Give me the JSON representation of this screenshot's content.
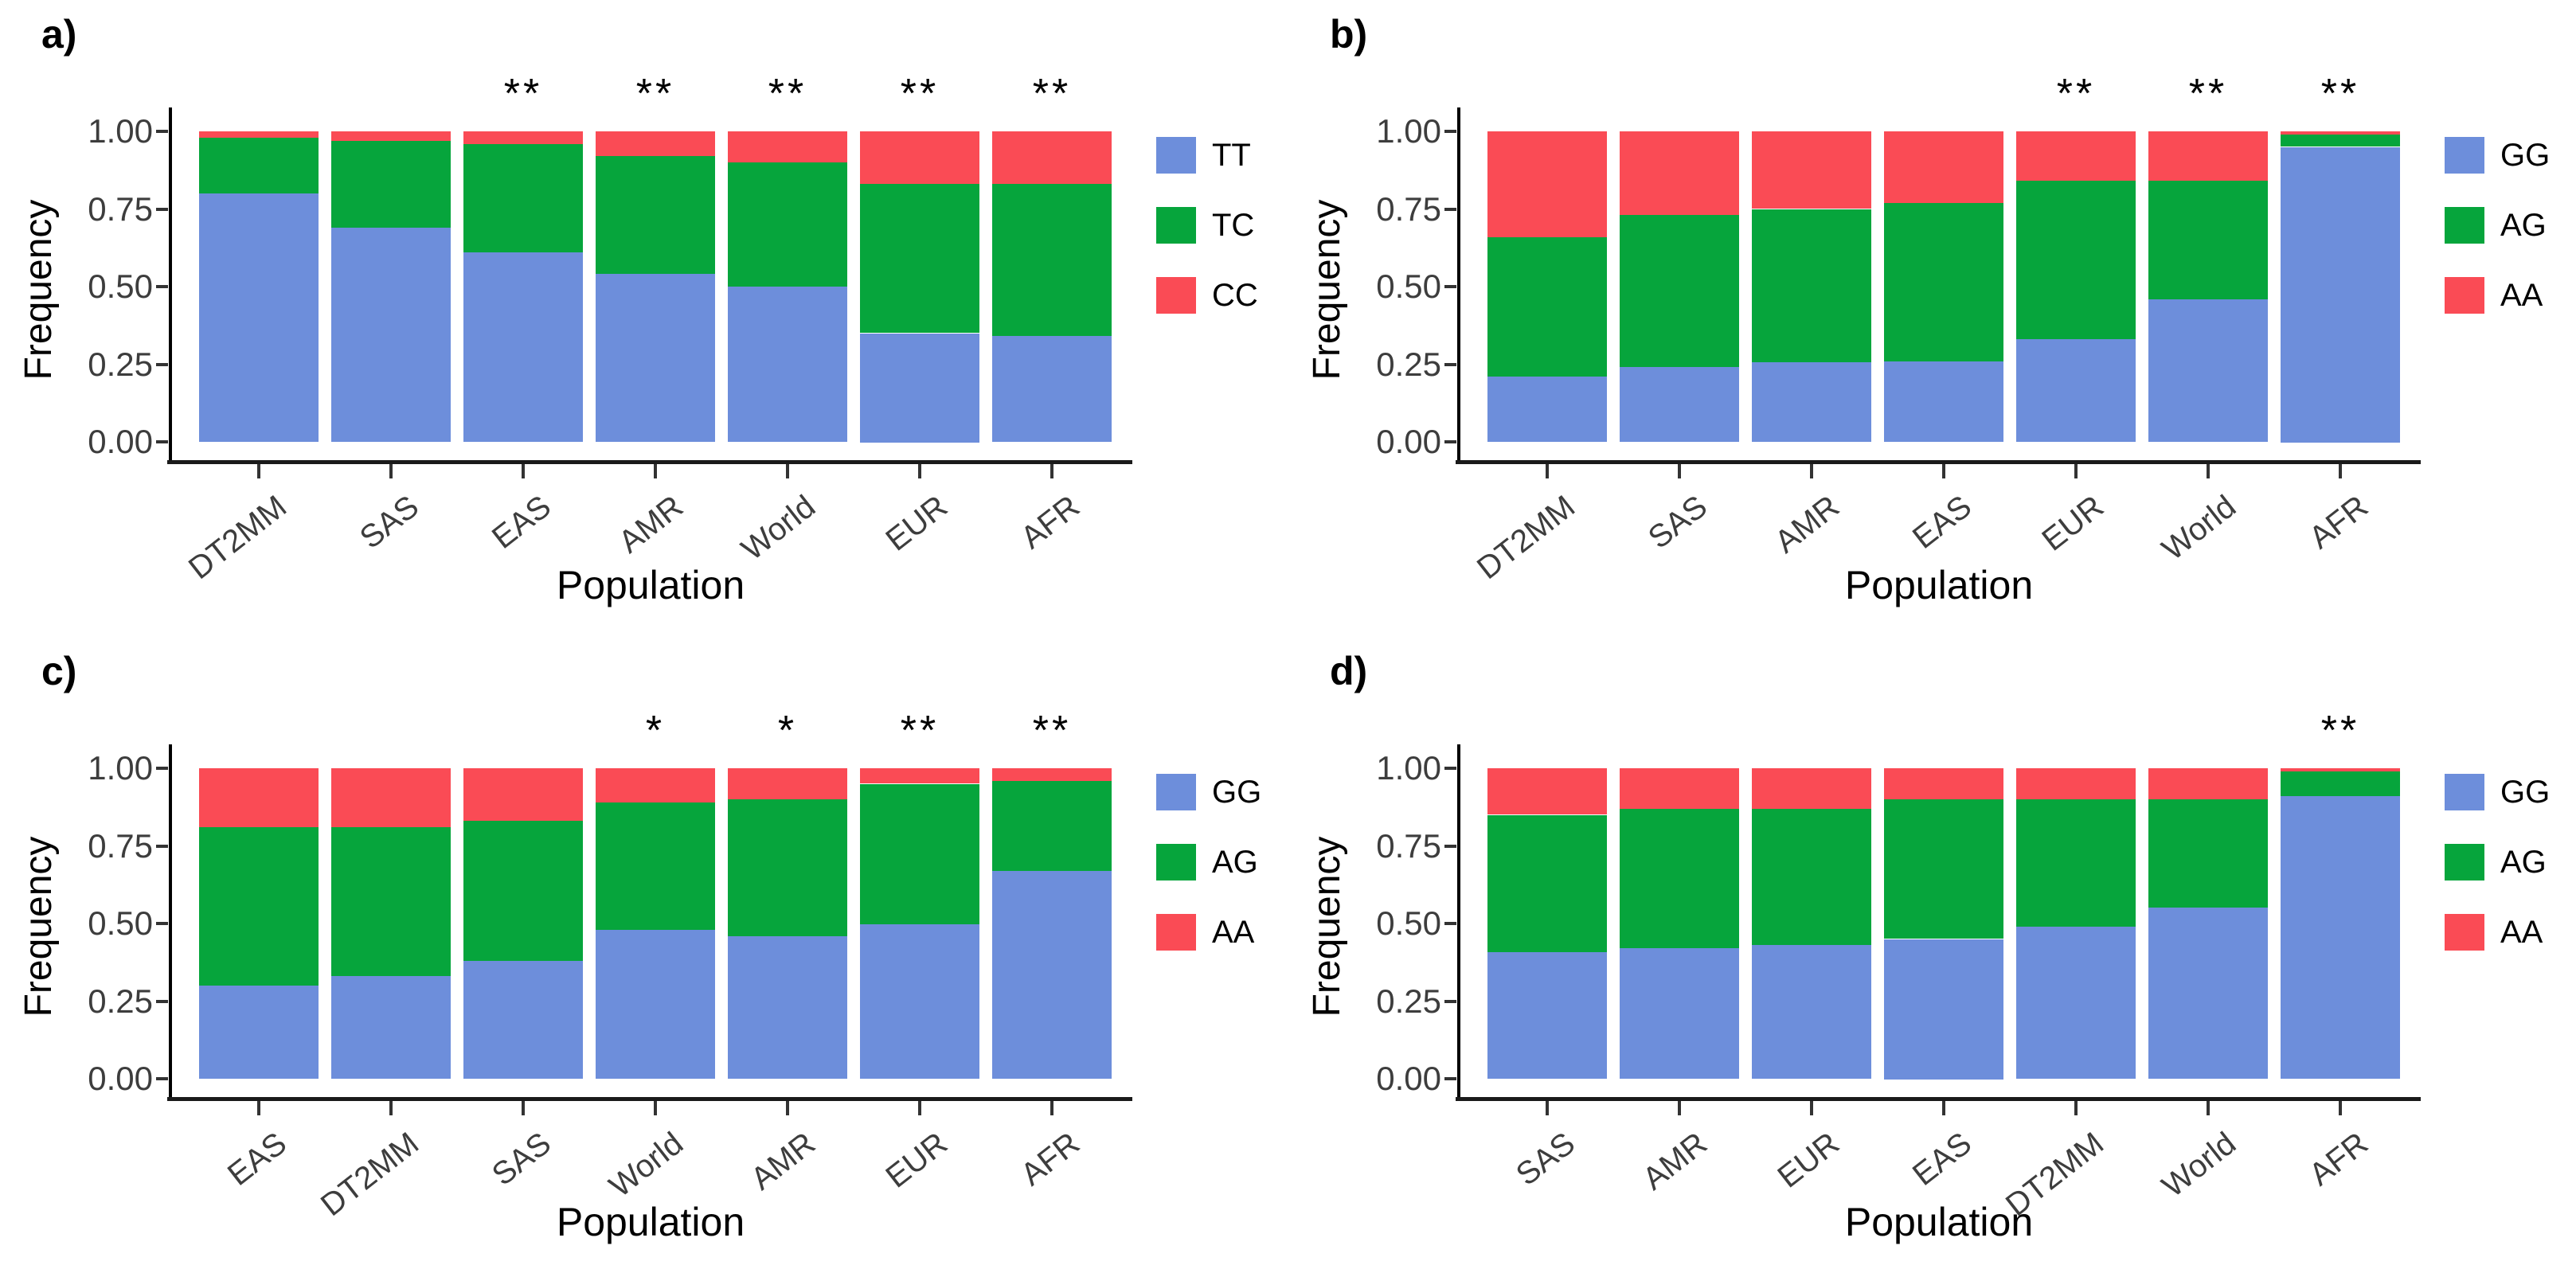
{
  "figure": {
    "background": "#ffffff",
    "series_colors": [
      "#6d8edb",
      "#06a53c",
      "#fa4b55"
    ],
    "axis_color": "#000000",
    "tick_label_color": "#3d3d3d"
  },
  "chart_data": [
    {
      "type": "bar",
      "panel_label": "a)",
      "title": "",
      "xlabel": "Population",
      "ylabel": "Frequency",
      "ylim": [
        0,
        1
      ],
      "yticks": [
        "1.00",
        "0.75",
        "0.50",
        "0.25",
        "0.00"
      ],
      "grid": "off",
      "legend_position": "right",
      "legend": [
        "TT",
        "TC",
        "CC"
      ],
      "colors": [
        "#6d8edb",
        "#06a53c",
        "#fa4b55"
      ],
      "categories": [
        "DT2MM",
        "SAS",
        "EAS",
        "AMR",
        "World",
        "EUR",
        "AFR"
      ],
      "series": [
        {
          "name": "TT",
          "values": [
            0.8,
            0.69,
            0.61,
            0.54,
            0.5,
            0.35,
            0.34
          ]
        },
        {
          "name": "TC",
          "values": [
            0.18,
            0.28,
            0.35,
            0.38,
            0.4,
            0.48,
            0.49
          ]
        },
        {
          "name": "CC",
          "values": [
            0.02,
            0.03,
            0.04,
            0.08,
            0.1,
            0.17,
            0.17
          ]
        }
      ],
      "significance": [
        "",
        "",
        "**",
        "**",
        "**",
        "**",
        "**"
      ]
    },
    {
      "type": "bar",
      "panel_label": "b)",
      "title": "",
      "xlabel": "Population",
      "ylabel": "Frequency",
      "ylim": [
        0,
        1
      ],
      "yticks": [
        "1.00",
        "0.75",
        "0.50",
        "0.25",
        "0.00"
      ],
      "grid": "off",
      "legend_position": "right",
      "legend": [
        "GG",
        "AG",
        "AA"
      ],
      "colors": [
        "#6d8edb",
        "#06a53c",
        "#fa4b55"
      ],
      "categories": [
        "DT2MM",
        "SAS",
        "AMR",
        "EAS",
        "EUR",
        "World",
        "AFR"
      ],
      "series": [
        {
          "name": "GG",
          "values": [
            0.21,
            0.24,
            0.26,
            0.26,
            0.33,
            0.46,
            0.95
          ]
        },
        {
          "name": "AG",
          "values": [
            0.45,
            0.49,
            0.49,
            0.51,
            0.51,
            0.38,
            0.04
          ]
        },
        {
          "name": "AA",
          "values": [
            0.34,
            0.27,
            0.25,
            0.23,
            0.16,
            0.16,
            0.01
          ]
        }
      ],
      "significance": [
        "",
        "",
        "",
        "",
        "**",
        "**",
        "**"
      ]
    },
    {
      "type": "bar",
      "panel_label": "c)",
      "title": "",
      "xlabel": "Population",
      "ylabel": "Frequency",
      "ylim": [
        0,
        1
      ],
      "yticks": [
        "1.00",
        "0.75",
        "0.50",
        "0.25",
        "0.00"
      ],
      "grid": "off",
      "legend_position": "right",
      "legend": [
        "GG",
        "AG",
        "AA"
      ],
      "colors": [
        "#6d8edb",
        "#06a53c",
        "#fa4b55"
      ],
      "categories": [
        "EAS",
        "DT2MM",
        "SAS",
        "World",
        "AMR",
        "EUR",
        "AFR"
      ],
      "series": [
        {
          "name": "GG",
          "values": [
            0.3,
            0.33,
            0.38,
            0.48,
            0.46,
            0.5,
            0.67
          ]
        },
        {
          "name": "AG",
          "values": [
            0.51,
            0.48,
            0.45,
            0.41,
            0.44,
            0.45,
            0.29
          ]
        },
        {
          "name": "AA",
          "values": [
            0.19,
            0.19,
            0.17,
            0.11,
            0.1,
            0.05,
            0.04
          ]
        }
      ],
      "significance": [
        "",
        "",
        "",
        "*",
        "*",
        "**",
        "**"
      ]
    },
    {
      "type": "bar",
      "panel_label": "d)",
      "title": "",
      "xlabel": "Population",
      "ylabel": "Frequency",
      "ylim": [
        0,
        1
      ],
      "yticks": [
        "1.00",
        "0.75",
        "0.50",
        "0.25",
        "0.00"
      ],
      "grid": "off",
      "legend_position": "right",
      "legend": [
        "GG",
        "AG",
        "AA"
      ],
      "colors": [
        "#6d8edb",
        "#06a53c",
        "#fa4b55"
      ],
      "categories": [
        "SAS",
        "AMR",
        "EUR",
        "EAS",
        "DT2MM",
        "World",
        "AFR"
      ],
      "series": [
        {
          "name": "GG",
          "values": [
            0.41,
            0.42,
            0.43,
            0.45,
            0.49,
            0.55,
            0.91
          ]
        },
        {
          "name": "AG",
          "values": [
            0.44,
            0.45,
            0.44,
            0.45,
            0.41,
            0.35,
            0.08
          ]
        },
        {
          "name": "AA",
          "values": [
            0.15,
            0.13,
            0.13,
            0.1,
            0.1,
            0.1,
            0.01
          ]
        }
      ],
      "significance": [
        "",
        "",
        "",
        "",
        "",
        "",
        "**"
      ]
    }
  ]
}
